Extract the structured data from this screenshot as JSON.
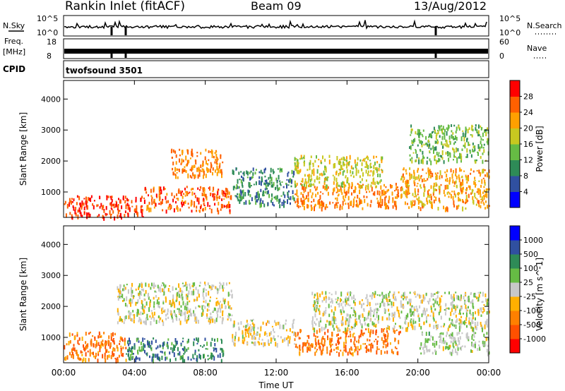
{
  "header": {
    "station": "Rankin Inlet (fitACF)",
    "beam": "Beam 09",
    "date": "13/Aug/2012"
  },
  "noise_panel": {
    "left_label": "N.Sky",
    "right_label": "N.Search",
    "left_ticks": [
      "10^5",
      "10^0"
    ],
    "right_ticks": [
      "10^5",
      "10^0"
    ]
  },
  "freq_panel": {
    "left_label_1": "Freq.",
    "left_label_2": "[MHz]",
    "right_label": "Nave",
    "left_ticks": [
      "18",
      "8"
    ],
    "right_ticks": [
      "60",
      "0"
    ]
  },
  "cpid_panel": {
    "label": "CPID",
    "program": "twofsound 3501"
  },
  "chart_data": [
    {
      "type": "heatmap",
      "title": "",
      "xlabel": "",
      "ylabel": "Slant Range [km]",
      "xlim": [
        0,
        24
      ],
      "ylim": [
        180,
        4600
      ],
      "ytick_labels": [
        "1000",
        "2000",
        "3000",
        "4000"
      ],
      "colorbar": {
        "label": "Power [dB]",
        "ticks": [
          "28",
          "24",
          "20",
          "16",
          "12",
          "8",
          "4"
        ],
        "range": [
          0,
          32
        ],
        "colors": [
          "#0000ff",
          "#3050a0",
          "#2e8b57",
          "#66bb44",
          "#c8c820",
          "#ffa000",
          "#ff6000",
          "#ff0000"
        ]
      },
      "regions": [
        {
          "t0": 0.0,
          "t1": 4.5,
          "r0": 200,
          "r1": 900,
          "v": 28
        },
        {
          "t0": 4.5,
          "t1": 9.5,
          "r0": 400,
          "r1": 1200,
          "v": 26
        },
        {
          "t0": 9.5,
          "t1": 13.0,
          "r0": 600,
          "r1": 1800,
          "v": 10
        },
        {
          "t0": 13.0,
          "t1": 19.0,
          "r0": 500,
          "r1": 1300,
          "v": 24
        },
        {
          "t0": 19.0,
          "t1": 24.0,
          "r0": 500,
          "r1": 1800,
          "v": 22
        },
        {
          "t0": 6.0,
          "t1": 9.0,
          "r0": 1500,
          "r1": 2400,
          "v": 24
        },
        {
          "t0": 13.0,
          "t1": 18.0,
          "r0": 1200,
          "r1": 2200,
          "v": 18
        },
        {
          "t0": 19.5,
          "t1": 24.0,
          "r0": 2000,
          "r1": 3200,
          "v": 14
        }
      ]
    },
    {
      "type": "heatmap",
      "title": "",
      "xlabel": "Time UT",
      "ylabel": "Slant Range [km]",
      "xlim": [
        0,
        24
      ],
      "ylim": [
        180,
        4600
      ],
      "xtick_labels": [
        "00:00",
        "04:00",
        "08:00",
        "12:00",
        "16:00",
        "20:00",
        "00:00"
      ],
      "ytick_labels": [
        "1000",
        "2000",
        "3000",
        "4000"
      ],
      "colorbar": {
        "label": "Velocity [m s^-1]",
        "ticks": [
          "1000",
          "500",
          "100",
          "25",
          "-25",
          "-100",
          "-500",
          "-1000"
        ],
        "range": [
          -1000,
          1000
        ],
        "colors": [
          "#ff0000",
          "#ff5000",
          "#ff8000",
          "#ffb000",
          "#c8c8c8",
          "#66bb44",
          "#2e8b57",
          "#3050a0",
          "#0000ff"
        ]
      },
      "regions": [
        {
          "t0": 0.0,
          "t1": 3.5,
          "r0": 300,
          "r1": 1200,
          "v": -500
        },
        {
          "t0": 3.5,
          "t1": 9.0,
          "r0": 300,
          "r1": 1000,
          "v": 500
        },
        {
          "t0": 3.0,
          "t1": 9.5,
          "r0": 1500,
          "r1": 2800,
          "v": 0
        },
        {
          "t0": 9.5,
          "t1": 13.0,
          "r0": 800,
          "r1": 1600,
          "v": -100
        },
        {
          "t0": 13.0,
          "t1": 19.0,
          "r0": 500,
          "r1": 1300,
          "v": -500
        },
        {
          "t0": 14.0,
          "t1": 24.0,
          "r0": 1300,
          "r1": 2500,
          "v": 0
        },
        {
          "t0": 20.0,
          "t1": 24.0,
          "r0": 500,
          "r1": 1200,
          "v": 100
        }
      ]
    }
  ]
}
